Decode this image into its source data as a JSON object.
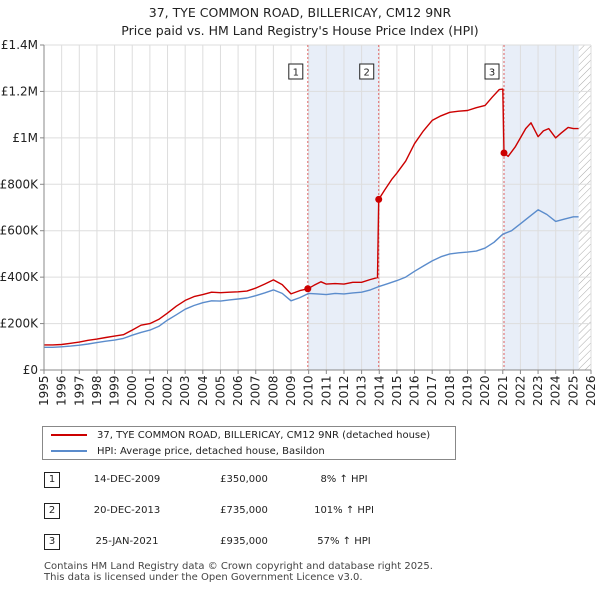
{
  "chart_data": {
    "type": "line",
    "title": "37, TYE COMMON ROAD, BILLERICAY, CM12 9NR",
    "subtitle": "Price paid vs. HM Land Registry's House Price Index (HPI)",
    "xlim": [
      1995,
      2026
    ],
    "ylim": [
      0,
      1400000
    ],
    "yticks": [
      0,
      200000,
      400000,
      600000,
      800000,
      1000000,
      1200000,
      1400000
    ],
    "ytick_labels": [
      "£0",
      "£200K",
      "£400K",
      "£600K",
      "£800K",
      "£1M",
      "£1.2M",
      "£1.4M"
    ],
    "xticks": [
      1995,
      1996,
      1997,
      1998,
      1999,
      2000,
      2001,
      2002,
      2003,
      2004,
      2005,
      2006,
      2007,
      2008,
      2009,
      2010,
      2011,
      2012,
      2013,
      2014,
      2015,
      2016,
      2017,
      2018,
      2019,
      2020,
      2021,
      2022,
      2023,
      2024,
      2025,
      2026
    ],
    "grid": true,
    "future_hatch_from": 2025.3,
    "series": [
      {
        "name": "37, TYE COMMON ROAD, BILLERICAY, CM12 9NR (detached house)",
        "color": "#cc0000",
        "x": [
          1995.0,
          1995.5,
          1996.0,
          1996.5,
          1997.0,
          1997.5,
          1998.0,
          1998.5,
          1999.0,
          1999.5,
          2000.0,
          2000.5,
          2001.0,
          2001.5,
          2002.0,
          2002.5,
          2003.0,
          2003.5,
          2004.0,
          2004.5,
          2005.0,
          2005.5,
          2006.0,
          2006.5,
          2007.0,
          2007.5,
          2008.0,
          2008.5,
          2009.0,
          2009.5,
          2009.95,
          2010.3,
          2010.7,
          2011.0,
          2011.5,
          2012.0,
          2012.5,
          2013.0,
          2013.5,
          2013.9,
          2013.97,
          2014.3,
          2014.7,
          2015.0,
          2015.5,
          2016.0,
          2016.5,
          2017.0,
          2017.5,
          2018.0,
          2018.5,
          2019.0,
          2019.5,
          2020.0,
          2020.4,
          2020.8,
          2021.0,
          2021.07,
          2021.3,
          2021.7,
          2022.0,
          2022.3,
          2022.6,
          2023.0,
          2023.3,
          2023.6,
          2024.0,
          2024.3,
          2024.7,
          2025.0,
          2025.3
        ],
        "y": [
          108000,
          108000,
          110000,
          115000,
          120000,
          128000,
          133000,
          140000,
          146000,
          152000,
          172000,
          193000,
          200000,
          218000,
          245000,
          275000,
          300000,
          316000,
          325000,
          335000,
          333000,
          335000,
          337000,
          340000,
          353000,
          370000,
          388000,
          368000,
          328000,
          342000,
          350000,
          365000,
          380000,
          370000,
          372000,
          370000,
          378000,
          378000,
          390000,
          398000,
          735000,
          775000,
          820000,
          848000,
          900000,
          975000,
          1030000,
          1075000,
          1095000,
          1110000,
          1115000,
          1118000,
          1130000,
          1140000,
          1175000,
          1208000,
          1210000,
          935000,
          920000,
          960000,
          1000000,
          1040000,
          1065000,
          1005000,
          1030000,
          1040000,
          1000000,
          1020000,
          1045000,
          1040000,
          1040000
        ]
      },
      {
        "name": "HPI: Average price, detached house, Basildon",
        "color": "#5b8ccc",
        "x": [
          1995.0,
          1995.5,
          1996.0,
          1996.5,
          1997.0,
          1997.5,
          1998.0,
          1998.5,
          1999.0,
          1999.5,
          2000.0,
          2000.5,
          2001.0,
          2001.5,
          2002.0,
          2002.5,
          2003.0,
          2003.5,
          2004.0,
          2004.5,
          2005.0,
          2005.5,
          2006.0,
          2006.5,
          2007.0,
          2007.5,
          2008.0,
          2008.5,
          2009.0,
          2009.5,
          2010.0,
          2010.5,
          2011.0,
          2011.5,
          2012.0,
          2012.5,
          2013.0,
          2013.5,
          2014.0,
          2014.5,
          2015.0,
          2015.5,
          2016.0,
          2016.5,
          2017.0,
          2017.5,
          2018.0,
          2018.5,
          2019.0,
          2019.5,
          2020.0,
          2020.5,
          2021.0,
          2021.5,
          2022.0,
          2022.5,
          2023.0,
          2023.5,
          2024.0,
          2024.5,
          2025.0,
          2025.3
        ],
        "y": [
          98000,
          98000,
          100000,
          103000,
          107000,
          112000,
          118000,
          124000,
          129000,
          136000,
          150000,
          162000,
          172000,
          188000,
          215000,
          238000,
          262000,
          278000,
          290000,
          298000,
          297000,
          302000,
          306000,
          310000,
          320000,
          332000,
          345000,
          330000,
          298000,
          312000,
          330000,
          328000,
          325000,
          330000,
          328000,
          332000,
          335000,
          345000,
          360000,
          372000,
          385000,
          400000,
          425000,
          448000,
          470000,
          488000,
          500000,
          505000,
          508000,
          512000,
          525000,
          550000,
          585000,
          600000,
          630000,
          660000,
          690000,
          670000,
          640000,
          650000,
          660000,
          660000
        ]
      }
    ],
    "markers": [
      {
        "label": "1",
        "x": 2009.95,
        "y": 350000
      },
      {
        "label": "2",
        "x": 2013.97,
        "y": 735000
      },
      {
        "label": "3",
        "x": 2021.07,
        "y": 935000
      }
    ],
    "shaded_bands": [
      {
        "from": 2009.95,
        "to": 2013.97
      },
      {
        "from": 2021.07,
        "to": 2025.3
      }
    ]
  },
  "legend": {
    "property_label": "37, TYE COMMON ROAD, BILLERICAY, CM12 9NR (detached house)",
    "hpi_label": "HPI: Average price, detached house, Basildon"
  },
  "transactions": [
    {
      "num": "1",
      "date": "14-DEC-2009",
      "price": "£350,000",
      "hpi": "8% ↑ HPI"
    },
    {
      "num": "2",
      "date": "20-DEC-2013",
      "price": "£735,000",
      "hpi": "101% ↑ HPI"
    },
    {
      "num": "3",
      "date": "25-JAN-2021",
      "price": "£935,000",
      "hpi": "57% ↑ HPI"
    }
  ],
  "footer": {
    "line1": "Contains HM Land Registry data © Crown copyright and database right 2025.",
    "line2": "This data is licensed under the Open Government Licence v3.0."
  }
}
